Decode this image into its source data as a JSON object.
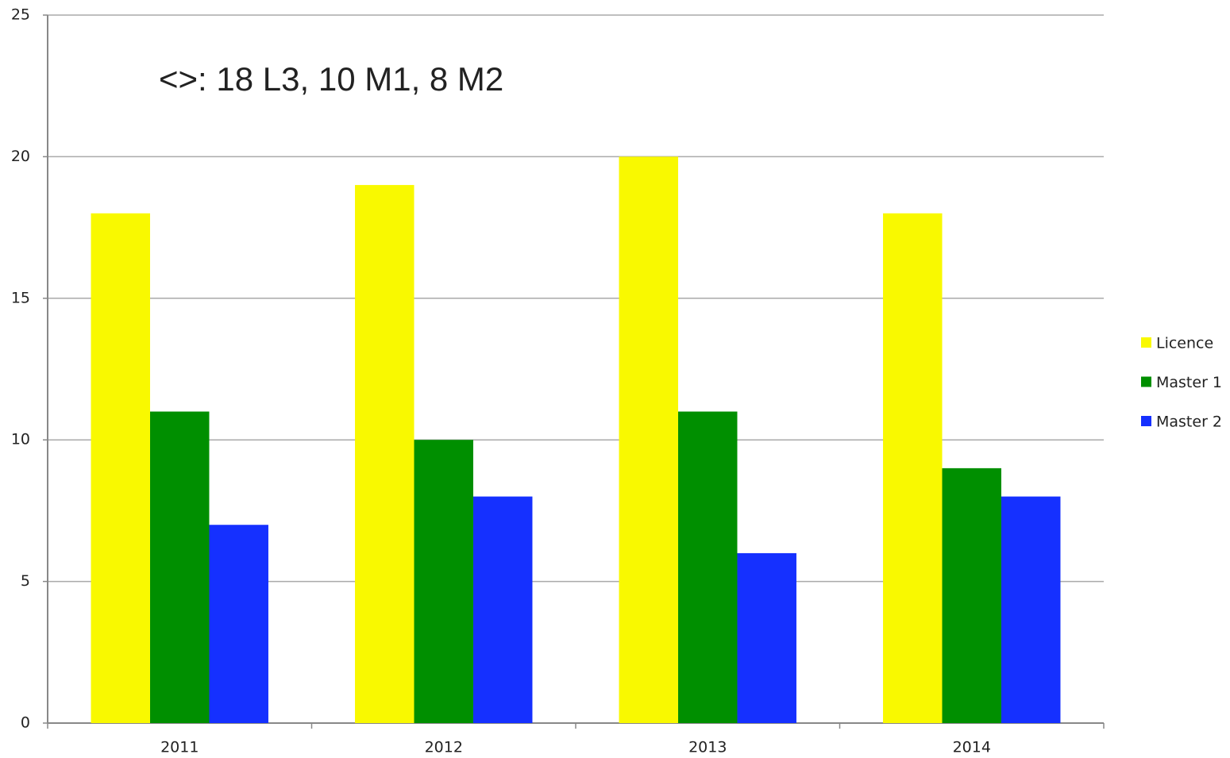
{
  "chart_data": {
    "type": "bar",
    "annotation": "<>: 18 L3, 10 M1, 8 M2",
    "categories": [
      "2011",
      "2012",
      "2013",
      "2014"
    ],
    "series": [
      {
        "name": "Licence",
        "color": "#f9f900",
        "values": [
          18,
          19,
          20,
          18
        ]
      },
      {
        "name": "Master 1",
        "color": "#008f00",
        "values": [
          11,
          10,
          11,
          9
        ]
      },
      {
        "name": "Master 2",
        "color": "#1530ff",
        "values": [
          7,
          8,
          6,
          8
        ]
      }
    ],
    "ylim": [
      0,
      25
    ],
    "yticks": [
      0,
      5,
      10,
      15,
      20,
      25
    ],
    "grid": true,
    "legend": "right"
  }
}
